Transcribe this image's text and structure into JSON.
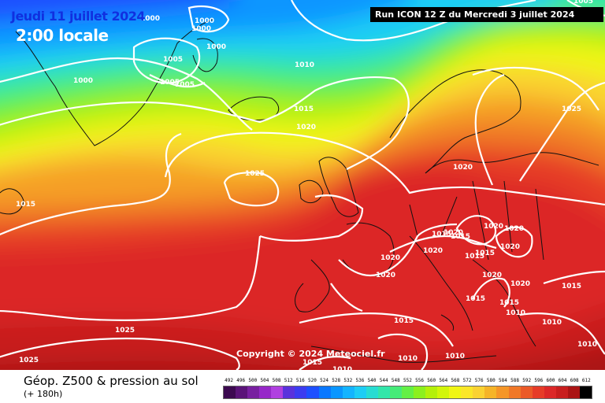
{
  "header": {
    "date": "Jeudi 11 juillet 2024",
    "time": "2:00 locale",
    "run": "Run ICON 12 Z du Mercredi 3 juillet 2024"
  },
  "copyright": "Copyright © 2024 Meteociel.fr",
  "footer": {
    "title": "Géop. Z500 & pression au sol",
    "subtitle": "(+ 180h)"
  },
  "isobars": [
    "1000",
    "1000",
    "1000",
    "1000",
    "1005",
    "1005",
    "1005",
    "1000",
    "1010",
    "1015",
    "1020",
    "1025",
    "1015",
    "1025",
    "1020",
    "1015",
    "1020",
    "1020",
    "1020",
    "1020",
    "1015",
    "1015",
    "1020",
    "1020",
    "1015",
    "1020",
    "1020",
    "1020",
    "1015",
    "1015",
    "1015",
    "1010",
    "1015",
    "1010",
    "1010",
    "1010",
    "1025",
    "1025",
    "1015",
    "1010",
    "1010",
    "1005"
  ],
  "legend": {
    "labels": [
      "492",
      "496",
      "500",
      "504",
      "508",
      "512",
      "516",
      "520",
      "524",
      "528",
      "532",
      "536",
      "540",
      "544",
      "548",
      "552",
      "556",
      "560",
      "564",
      "568",
      "572",
      "576",
      "580",
      "584",
      "588",
      "592",
      "596",
      "600",
      "604",
      "608",
      "612"
    ],
    "colors": [
      "#3c0a50",
      "#5a1478",
      "#7820a0",
      "#9628c8",
      "#b040e0",
      "#5a32dc",
      "#3c3cf0",
      "#1e50ff",
      "#0a78ff",
      "#0a96ff",
      "#14b4ff",
      "#1ecdf5",
      "#28dcd2",
      "#32e6aa",
      "#46eb78",
      "#64f046",
      "#8cf01e",
      "#b4f00a",
      "#d2f50a",
      "#f0f514",
      "#fae628",
      "#fad232",
      "#f5b428",
      "#f59628",
      "#f07828",
      "#eb5a28",
      "#e63c28",
      "#dc2828",
      "#c81e1e",
      "#aa1414",
      "#000000"
    ]
  }
}
